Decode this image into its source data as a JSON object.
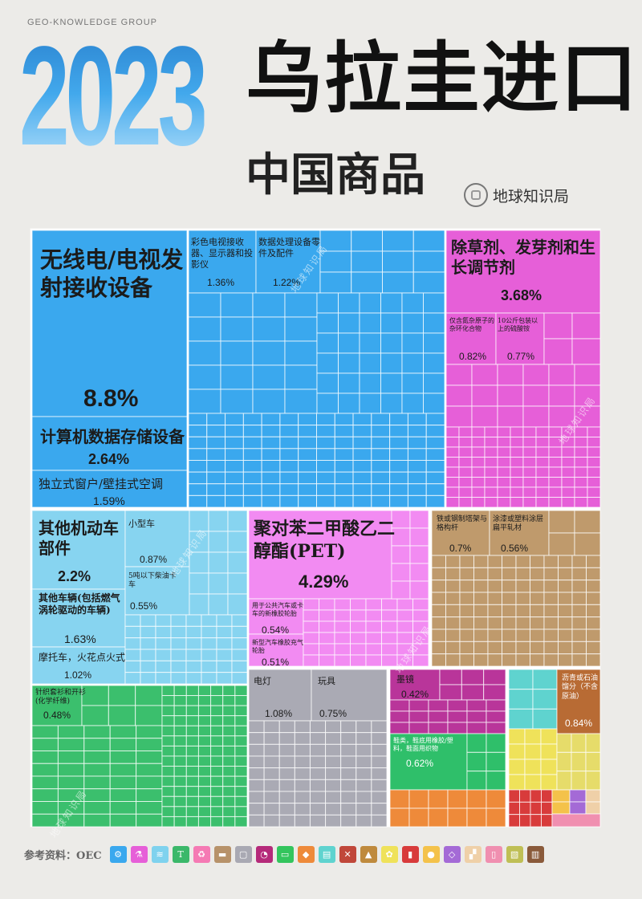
{
  "header": {
    "brand": "GEO-KNOWLEDGE GROUP",
    "year": "2023",
    "title": "乌拉圭进口",
    "subtitle": "中国商品",
    "logo_text": "地球知识局"
  },
  "footer": {
    "source": "参考资料：OEC",
    "icons": [
      {
        "name": "gear-icon",
        "color": "#3aa8ee",
        "glyph": "⚙"
      },
      {
        "name": "flask-icon",
        "color": "#e65fd8",
        "glyph": "⚗"
      },
      {
        "name": "textile-icon",
        "color": "#7fd2ee",
        "glyph": "≋"
      },
      {
        "name": "shirt-icon",
        "color": "#3bb86a",
        "glyph": "T"
      },
      {
        "name": "recycle-icon",
        "color": "#f57ab4",
        "glyph": "♻"
      },
      {
        "name": "anvil-icon",
        "color": "#b7926a",
        "glyph": "▬"
      },
      {
        "name": "box-icon",
        "color": "#a9a9b3",
        "glyph": "▢"
      },
      {
        "name": "gauge-icon",
        "color": "#b52a7a",
        "glyph": "◔"
      },
      {
        "name": "car-icon",
        "color": "#33c55d",
        "glyph": "▭"
      },
      {
        "name": "stone-icon",
        "color": "#ee8a3a",
        "glyph": "◆"
      },
      {
        "name": "paper-icon",
        "color": "#5fd3cf",
        "glyph": "▤"
      },
      {
        "name": "tools-icon",
        "color": "#c0473a",
        "glyph": "✕"
      },
      {
        "name": "mineral-icon",
        "color": "#bf8a3d",
        "glyph": "▲"
      },
      {
        "name": "plant-icon",
        "color": "#efe25a",
        "glyph": "✿"
      },
      {
        "name": "barrel-icon",
        "color": "#d83b3b",
        "glyph": "▮"
      },
      {
        "name": "food-icon",
        "color": "#f4c24a",
        "glyph": "●"
      },
      {
        "name": "gem-icon",
        "color": "#a46ad6",
        "glyph": "◇"
      },
      {
        "name": "shoe-icon",
        "color": "#efd0a8",
        "glyph": "▞"
      },
      {
        "name": "bottle-icon",
        "color": "#f08fb0",
        "glyph": "▯"
      },
      {
        "name": "hide-icon",
        "color": "#bfbf55",
        "glyph": "▧"
      },
      {
        "name": "easel-icon",
        "color": "#8a5a3a",
        "glyph": "▥"
      }
    ]
  },
  "chart_data": {
    "type": "treemap",
    "title": "2023 乌拉圭进口 中国商品",
    "groups": [
      {
        "name": "machinery",
        "color": "#3aa8ee",
        "items": [
          {
            "label": "无线电/电视发射接收设备",
            "value": "8.8%"
          },
          {
            "label": "计算机数据存储设备",
            "value": "2.64%"
          },
          {
            "label": "独立式窗户/壁挂式空调",
            "value": "1.59%"
          },
          {
            "label": "彩色电视接收器、显示器和投影仪",
            "value": "1.36%"
          },
          {
            "label": "数据处理设备零件及配件",
            "value": "1.22%"
          }
        ]
      },
      {
        "name": "chemicals",
        "color": "#e65fd8",
        "items": [
          {
            "label": "除草剂、发芽剂和生长调节剂",
            "value": "3.68%"
          },
          {
            "label": "仅含氮杂原子的杂环化合物",
            "value": "0.82%"
          },
          {
            "label": "10公斤包装以上的硫酸铵",
            "value": "0.77%"
          }
        ]
      },
      {
        "name": "vehicles",
        "color": "#87d4f0",
        "items": [
          {
            "label": "其他机动车部件",
            "value": "2.2%"
          },
          {
            "label": "其他车辆(包括燃气涡轮驱动的车辆)",
            "value": "1.63%"
          },
          {
            "label": "摩托车，火花点火式",
            "value": "1.02%"
          },
          {
            "label": "小型车",
            "value": "0.87%"
          },
          {
            "label": "5吨以下柴油卡车",
            "value": "0.55%"
          }
        ]
      },
      {
        "name": "plastics",
        "color": "#f28bf2",
        "items": [
          {
            "label": "聚对苯二甲酸乙二醇酯(PET)",
            "value": "4.29%"
          },
          {
            "label": "用于公共汽车或卡车的新橡胶轮胎",
            "value": "0.54%"
          },
          {
            "label": "新型汽车橡胶充气轮胎",
            "value": "0.51%"
          }
        ]
      },
      {
        "name": "metals",
        "color": "#bf9a6c",
        "items": [
          {
            "label": "铁或钢制塔架与格构杆",
            "value": "0.7%"
          },
          {
            "label": "涂漆或塑料涂层扁平轧材",
            "value": "0.56%"
          }
        ]
      },
      {
        "name": "textiles",
        "color": "#3bbf6d",
        "items": [
          {
            "label": "针织套衫和开衫(化学纤维)",
            "value": "0.48%"
          }
        ]
      },
      {
        "name": "misc",
        "color": "#aaaab4",
        "items": [
          {
            "label": "电灯",
            "value": "1.08%"
          },
          {
            "label": "玩具",
            "value": "0.75%"
          }
        ]
      },
      {
        "name": "instruments",
        "color": "#b9359a",
        "items": [
          {
            "label": "墨镜",
            "value": "0.42%"
          },
          {
            "label": "鞋类，鞋底用橡胶/塑料，鞋面用织物",
            "value": "0.62%"
          }
        ]
      },
      {
        "name": "mineral",
        "color": "#b86b34",
        "items": [
          {
            "label": "沥青或石油馏分（不含原油）",
            "value": "0.84%"
          }
        ]
      }
    ],
    "watermark": "地球知识局"
  }
}
